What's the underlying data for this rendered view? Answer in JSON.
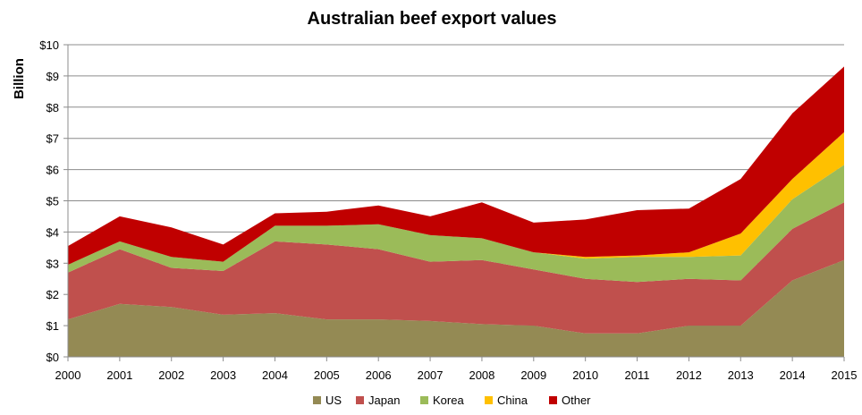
{
  "chart_data": {
    "type": "area",
    "stacked": true,
    "title": "Australian beef export values",
    "ylabel": "Billion",
    "xlabel": "",
    "x": [
      2000,
      2001,
      2002,
      2003,
      2004,
      2005,
      2006,
      2007,
      2008,
      2009,
      2010,
      2011,
      2012,
      2013,
      2014,
      2015
    ],
    "ylim": [
      0,
      10
    ],
    "yticks": [
      0,
      1,
      2,
      3,
      4,
      5,
      6,
      7,
      8,
      9,
      10
    ],
    "ytick_labels": [
      "$0",
      "$1",
      "$2",
      "$3",
      "$4",
      "$5",
      "$6",
      "$7",
      "$8",
      "$9",
      "$10"
    ],
    "grid": true,
    "legend_position": "bottom",
    "series": [
      {
        "name": "US",
        "color": "#948a54",
        "values": [
          1.2,
          1.7,
          1.6,
          1.35,
          1.4,
          1.2,
          1.2,
          1.15,
          1.05,
          1.0,
          0.75,
          0.75,
          1.0,
          1.0,
          2.45,
          3.1
        ]
      },
      {
        "name": "Japan",
        "color": "#c0504d",
        "values": [
          1.5,
          1.75,
          1.25,
          1.4,
          2.3,
          2.4,
          2.25,
          1.9,
          2.05,
          1.8,
          1.75,
          1.65,
          1.5,
          1.45,
          1.65,
          1.85
        ]
      },
      {
        "name": "Korea",
        "color": "#9bbb59",
        "values": [
          0.25,
          0.25,
          0.35,
          0.3,
          0.5,
          0.6,
          0.8,
          0.85,
          0.7,
          0.55,
          0.65,
          0.8,
          0.7,
          0.8,
          0.95,
          1.2
        ]
      },
      {
        "name": "China",
        "color": "#ffc000",
        "values": [
          0.0,
          0.0,
          0.0,
          0.0,
          0.0,
          0.0,
          0.0,
          0.0,
          0.0,
          0.0,
          0.05,
          0.05,
          0.15,
          0.7,
          0.65,
          1.05
        ]
      },
      {
        "name": "Other",
        "color": "#c00000",
        "values": [
          0.6,
          0.8,
          0.95,
          0.55,
          0.4,
          0.45,
          0.6,
          0.6,
          1.15,
          0.95,
          1.2,
          1.45,
          1.4,
          1.75,
          2.1,
          2.1
        ]
      }
    ]
  }
}
